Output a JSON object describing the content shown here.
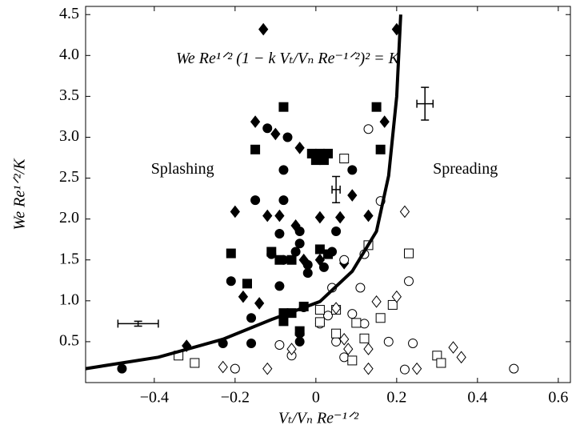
{
  "chart_data": {
    "type": "scatter",
    "xlabel": "Vₜ/Vₙ Re⁻¹ᐟ²",
    "ylabel": "We Re¹ᐟ²/K",
    "xlim": [
      -0.57,
      0.63
    ],
    "ylim": [
      0,
      4.6
    ],
    "xticks": [
      {
        "value": -0.4,
        "label": "−0.4"
      },
      {
        "value": -0.2,
        "label": "−0.2"
      },
      0,
      0.2,
      0.4,
      0.6
    ],
    "yticks": [
      0.5,
      {
        "value": 1,
        "label": "1.0"
      },
      1.5,
      {
        "value": 2,
        "label": "2.0"
      },
      2.5,
      {
        "value": 3,
        "label": "3.0"
      },
      3.5,
      {
        "value": 4,
        "label": "4.0"
      },
      4.5
    ],
    "grid": false,
    "annotations": [
      {
        "text": "Splashing",
        "x": -0.33,
        "y": 2.6
      },
      {
        "text": "Spreading",
        "x": 0.37,
        "y": 2.6
      },
      {
        "text": "We Re¹ᐟ² (1 − k Vₜ/Vₙ Re⁻¹ᐟ²)² = K",
        "x": -0.07,
        "y": 3.95
      }
    ],
    "series": [
      {
        "marker": "diamond",
        "filled": true,
        "color": "#000000",
        "x": [
          -0.13,
          0.2,
          -0.15,
          -0.1,
          0.17,
          -0.04,
          -0.2,
          -0.12,
          -0.09,
          0.06,
          0.13,
          0.01,
          -0.05,
          0.09,
          -0.18,
          -0.14,
          -0.32,
          -0.03,
          0.01,
          0.07
        ],
        "y": [
          4.32,
          4.32,
          3.19,
          3.04,
          3.19,
          2.87,
          2.09,
          2.04,
          2.04,
          2.02,
          2.04,
          2.02,
          1.92,
          2.29,
          1.05,
          0.97,
          0.45,
          1.5,
          1.5,
          1.46
        ]
      },
      {
        "marker": "square",
        "filled": true,
        "color": "#000000",
        "x": [
          -0.08,
          0.15,
          -0.15,
          -0.01,
          0.01,
          0.03,
          0.0,
          0.02,
          0.16,
          -0.21,
          -0.11,
          -0.09,
          -0.06,
          0.01,
          0.03,
          -0.17,
          -0.08,
          -0.06,
          -0.08,
          -0.03,
          -0.04
        ],
        "y": [
          3.37,
          3.37,
          2.85,
          2.8,
          2.8,
          2.8,
          2.72,
          2.72,
          2.85,
          1.58,
          1.6,
          1.5,
          1.5,
          1.63,
          1.57,
          1.21,
          0.85,
          0.85,
          0.75,
          0.93,
          0.63
        ]
      },
      {
        "marker": "circle",
        "filled": true,
        "color": "#000000",
        "x": [
          -0.12,
          -0.07,
          -0.08,
          0.09,
          -0.15,
          -0.08,
          -0.04,
          -0.09,
          -0.04,
          0.05,
          -0.11,
          -0.08,
          -0.05,
          0.04,
          -0.02,
          -0.02,
          0.02,
          -0.21,
          -0.09,
          -0.16,
          -0.03,
          -0.23,
          -0.16,
          -0.04,
          -0.04,
          -0.48
        ],
        "y": [
          3.11,
          3.0,
          2.6,
          2.6,
          2.23,
          2.23,
          1.85,
          1.82,
          1.7,
          1.85,
          1.57,
          1.5,
          1.6,
          1.6,
          1.44,
          1.34,
          1.41,
          1.24,
          1.18,
          0.79,
          0.92,
          0.48,
          0.48,
          0.6,
          0.5,
          0.17
        ]
      },
      {
        "marker": "circle",
        "filled": false,
        "color": "#000000",
        "x": [
          0.13,
          0.16,
          0.12,
          0.07,
          0.04,
          0.11,
          0.23,
          0.03,
          0.09,
          0.12,
          0.05,
          0.18,
          0.24,
          -0.09,
          -0.06,
          0.07,
          -0.2,
          0.22,
          0.49,
          0.01
        ],
        "y": [
          3.1,
          2.22,
          1.57,
          1.5,
          1.16,
          1.16,
          1.24,
          0.82,
          0.84,
          0.72,
          0.5,
          0.5,
          0.48,
          0.46,
          0.33,
          0.31,
          0.17,
          0.16,
          0.17,
          0.72
        ]
      },
      {
        "marker": "square",
        "filled": false,
        "color": "#000000",
        "x": [
          0.07,
          0.13,
          0.23,
          0.19,
          0.16,
          0.05,
          0.01,
          0.01,
          0.1,
          0.05,
          0.12,
          0.09,
          0.3,
          0.31,
          -0.34,
          -0.3
        ],
        "y": [
          2.74,
          1.68,
          1.58,
          0.95,
          0.79,
          0.89,
          0.89,
          0.74,
          0.73,
          0.6,
          0.54,
          0.27,
          0.33,
          0.24,
          0.33,
          0.24
        ]
      },
      {
        "marker": "diamond",
        "filled": false,
        "color": "#000000",
        "x": [
          0.22,
          0.2,
          0.15,
          0.05,
          0.13,
          0.08,
          0.07,
          -0.06,
          -0.12,
          -0.23,
          0.13,
          0.25,
          0.34,
          0.36
        ],
        "y": [
          2.09,
          1.05,
          0.99,
          0.91,
          0.41,
          0.41,
          0.53,
          0.41,
          0.17,
          0.19,
          0.17,
          0.17,
          0.43,
          0.31
        ]
      }
    ],
    "curve": {
      "color": "#000000",
      "x": [
        -0.57,
        -0.39,
        -0.23,
        -0.11,
        0.01,
        0.09,
        0.15,
        0.18,
        0.2,
        0.21
      ],
      "y": [
        0.17,
        0.31,
        0.53,
        0.77,
        0.99,
        1.36,
        1.85,
        2.53,
        3.5,
        4.5
      ]
    },
    "error_bars": [
      {
        "x": -0.44,
        "y": 0.72,
        "xerr": 0.05,
        "yerr": 0.03
      },
      {
        "x": 0.05,
        "y": 2.36,
        "xerr": 0.01,
        "yerr": 0.16
      },
      {
        "x": 0.27,
        "y": 3.41,
        "xerr": 0.02,
        "yerr": 0.2
      }
    ]
  }
}
